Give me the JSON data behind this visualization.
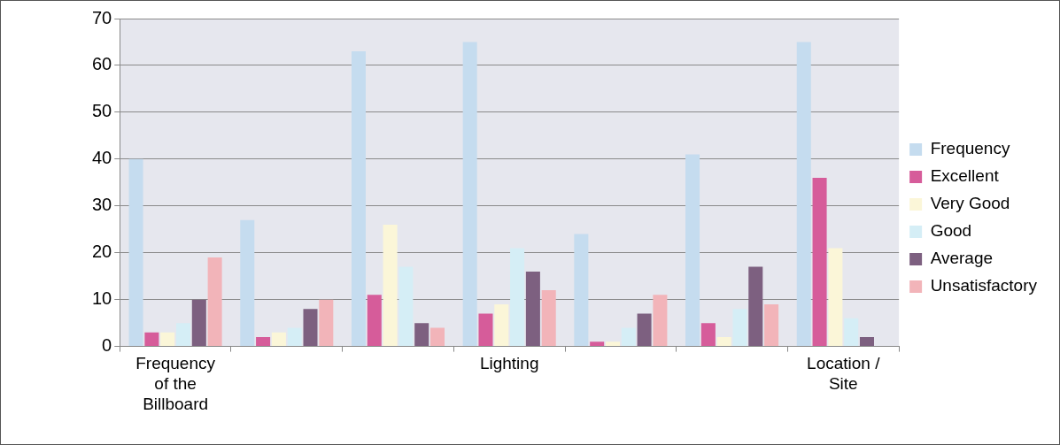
{
  "chart_data": {
    "type": "bar",
    "categories": [
      "Frequency of the Billboard",
      null,
      null,
      "Lighting",
      null,
      null,
      "Location / Site"
    ],
    "series": [
      {
        "name": "Frequency",
        "color": "#c5dcef",
        "values": [
          40,
          27,
          63,
          65,
          24,
          41,
          65
        ]
      },
      {
        "name": "Excellent",
        "color": "#d65c9a",
        "values": [
          3,
          2,
          11,
          7,
          1,
          5,
          36
        ]
      },
      {
        "name": "Very Good",
        "color": "#fbf6d8",
        "values": [
          3,
          3,
          26,
          9,
          1,
          2,
          21
        ]
      },
      {
        "name": "Good",
        "color": "#d5eef6",
        "values": [
          5,
          4,
          17,
          21,
          4,
          8,
          6
        ]
      },
      {
        "name": "Average",
        "color": "#7d6080",
        "values": [
          10,
          8,
          5,
          16,
          7,
          17,
          2
        ]
      },
      {
        "name": "Unsatisfactory",
        "color": "#f2b4b9",
        "values": [
          19,
          10,
          4,
          12,
          11,
          9,
          0
        ]
      }
    ],
    "ylim": [
      0,
      70
    ],
    "yticks": [
      0,
      10,
      20,
      30,
      40,
      50,
      60,
      70
    ],
    "grid": "y",
    "legend": "right"
  }
}
